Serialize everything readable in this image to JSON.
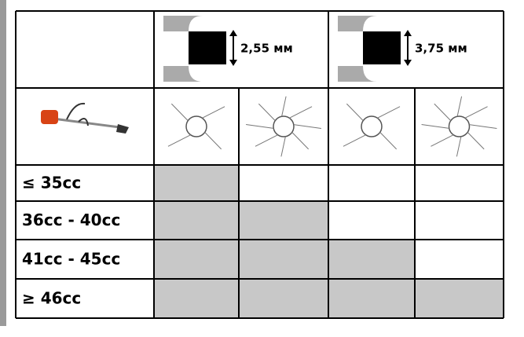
{
  "header": {
    "line_sizes": [
      "2,55 мм",
      "3,75 мм"
    ]
  },
  "table": {
    "rows": [
      {
        "label": "≤ 35cc",
        "shaded": [
          true,
          false,
          false,
          false
        ]
      },
      {
        "label": "36cc - 40cc",
        "shaded": [
          true,
          true,
          false,
          false
        ]
      },
      {
        "label": "41cc - 45cc",
        "shaded": [
          true,
          true,
          true,
          false
        ]
      },
      {
        "label": "≥ 46cc",
        "shaded": [
          true,
          true,
          true,
          true
        ]
      }
    ]
  }
}
